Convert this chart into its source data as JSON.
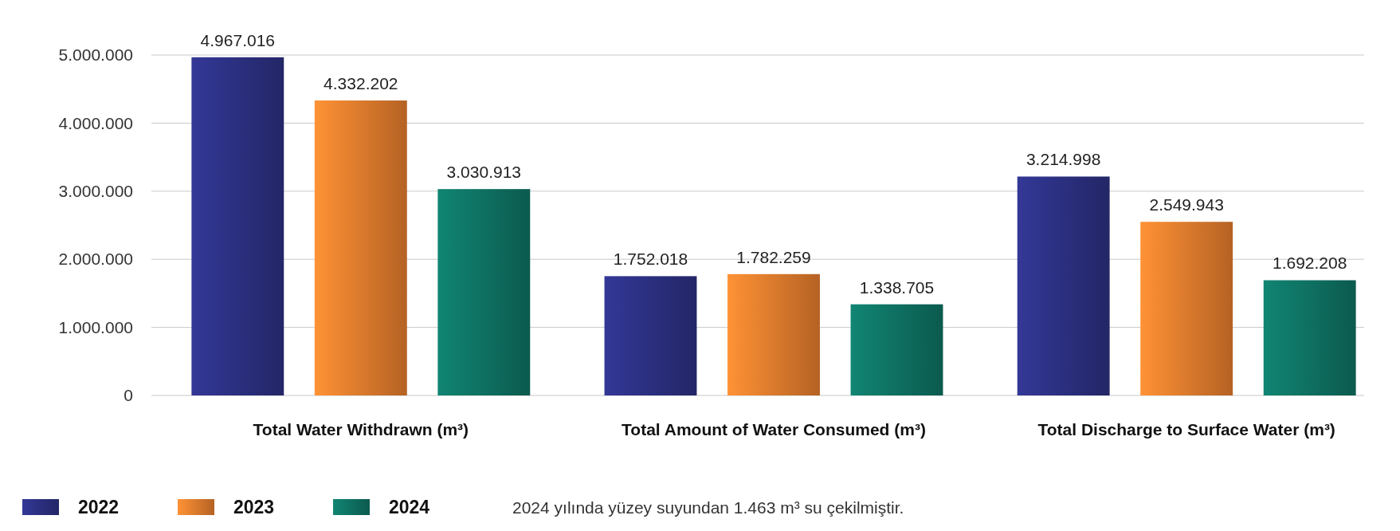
{
  "chart_data": {
    "type": "bar",
    "categories": [
      "Total Water Withdrawn (m³)",
      "Total Amount of Water Consumed (m³)",
      "Total Discharge to Surface Water (m³)"
    ],
    "series": [
      {
        "name": "2022",
        "color": "#2b2f7e",
        "values": [
          4967016,
          1752018,
          3214998
        ],
        "value_labels": [
          "4.967.016",
          "1.752.018",
          "3.214.998"
        ]
      },
      {
        "name": "2023",
        "color": "#e07a2c",
        "values": [
          4332202,
          1782259,
          2549943
        ],
        "value_labels": [
          "4.332.202",
          "1.782.259",
          "2.549.943"
        ]
      },
      {
        "name": "2024",
        "color": "#0e6f60",
        "values": [
          3030913,
          1338705,
          1692208
        ],
        "value_labels": [
          "3.030.913",
          "1.338.705",
          "1.692.208"
        ]
      }
    ],
    "ylim": [
      0,
      5000000
    ],
    "yticks": [
      {
        "value": 0,
        "label": "0"
      },
      {
        "value": 1000000,
        "label": "1.000.000"
      },
      {
        "value": 2000000,
        "label": "2.000.000"
      },
      {
        "value": 3000000,
        "label": "3.000.000"
      },
      {
        "value": 4000000,
        "label": "4.000.000"
      },
      {
        "value": 5000000,
        "label": "5.000.000"
      }
    ],
    "grid": "y",
    "legend": "bottom left",
    "annotations": [
      "2024 yılında yüzey suyundan 1.463 m³ su çekilmiştir."
    ]
  }
}
